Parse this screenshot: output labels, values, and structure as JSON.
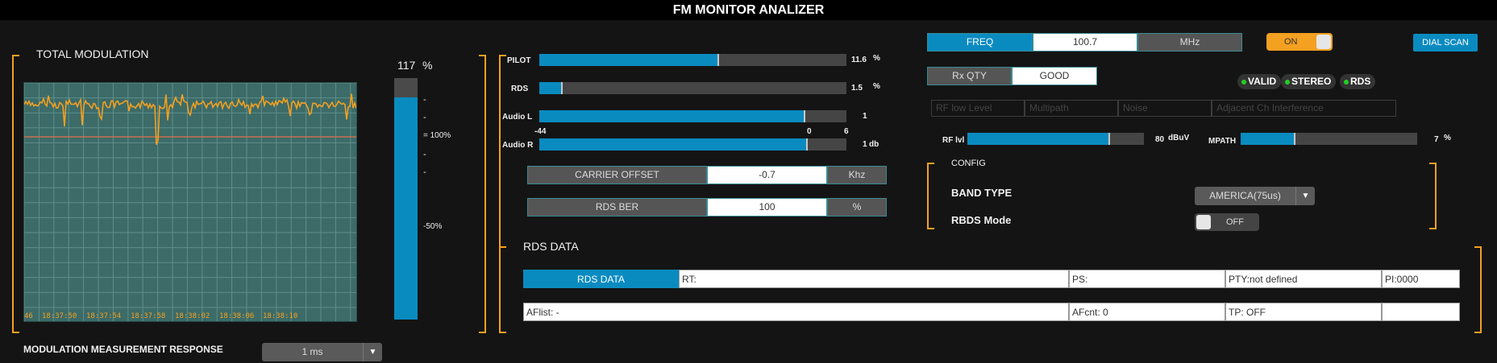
{
  "title": "FM MONITOR ANALIZER",
  "total_modulation": {
    "heading": "TOTAL MODULATION",
    "value": "117",
    "unit": "%",
    "meter_fraction": 0.92,
    "scale_100": "= 100%",
    "scale_50": "-50%",
    "tick": "-",
    "time_labels": [
      "46",
      "18:37:50",
      "18:37:54",
      "18:37:58",
      "18:38:02",
      "18:38:06",
      "18:38:10"
    ],
    "trace_color": "#f4a020",
    "ref_line_color": "#c87050"
  },
  "modulation_response": {
    "label": "MODULATION MEASUREMENT RESPONSE",
    "selected": "1 ms"
  },
  "signals": [
    {
      "name": "PILOT",
      "value": "11.6",
      "unit": "%",
      "fraction": 0.58
    },
    {
      "name": "RDS",
      "value": "1.5",
      "unit": "%",
      "fraction": 0.07
    },
    {
      "name": "Audio L",
      "value": "1",
      "unit": "",
      "fraction": 0.86
    },
    {
      "name": "Audio R",
      "value": "1",
      "unit": "db",
      "fraction": 0.87
    }
  ],
  "audio_scale": {
    "min": "-44",
    "zero": "0",
    "max": "6"
  },
  "carrier_offset": {
    "label": "CARRIER OFFSET",
    "value": "-0.7",
    "unit": "Khz"
  },
  "rds_ber": {
    "label": "RDS BER",
    "value": "100",
    "unit": "%"
  },
  "freq": {
    "label": "FREQ",
    "value": "100.7",
    "unit": "MHz"
  },
  "power_toggle": "ON",
  "dial_scan": "DIAL SCAN",
  "rx_qty": {
    "label": "Rx QTY",
    "value": "GOOD"
  },
  "status_pills": [
    "VALID",
    "STEREO",
    "RDS"
  ],
  "status_dot_color": "#22d022",
  "interference_flags": [
    "RF low Level",
    "Multipath",
    "Noise",
    "Adjacent Ch Interference"
  ],
  "rf_level": {
    "label": "RF lvl",
    "value": "80",
    "unit": "dBuV",
    "fraction": 0.8
  },
  "multipath": {
    "label": "MPATH",
    "value": "7",
    "unit": "%",
    "fraction": 0.3
  },
  "config": {
    "heading": "CONFIG",
    "band_type_label": "BAND TYPE",
    "band_type_value": "AMERICA(75us)",
    "rbds_label": "RBDS Mode",
    "rbds_value": "OFF"
  },
  "rds_data": {
    "heading": "RDS DATA",
    "tab": "RDS DATA",
    "rt": "RT:",
    "ps": "PS:",
    "pty": "PTY:not defined",
    "pi": "PI:0000",
    "aflist": "AFlist: -",
    "afcnt": "AFcnt: 0",
    "tp": "TP: OFF",
    "extra": ""
  }
}
